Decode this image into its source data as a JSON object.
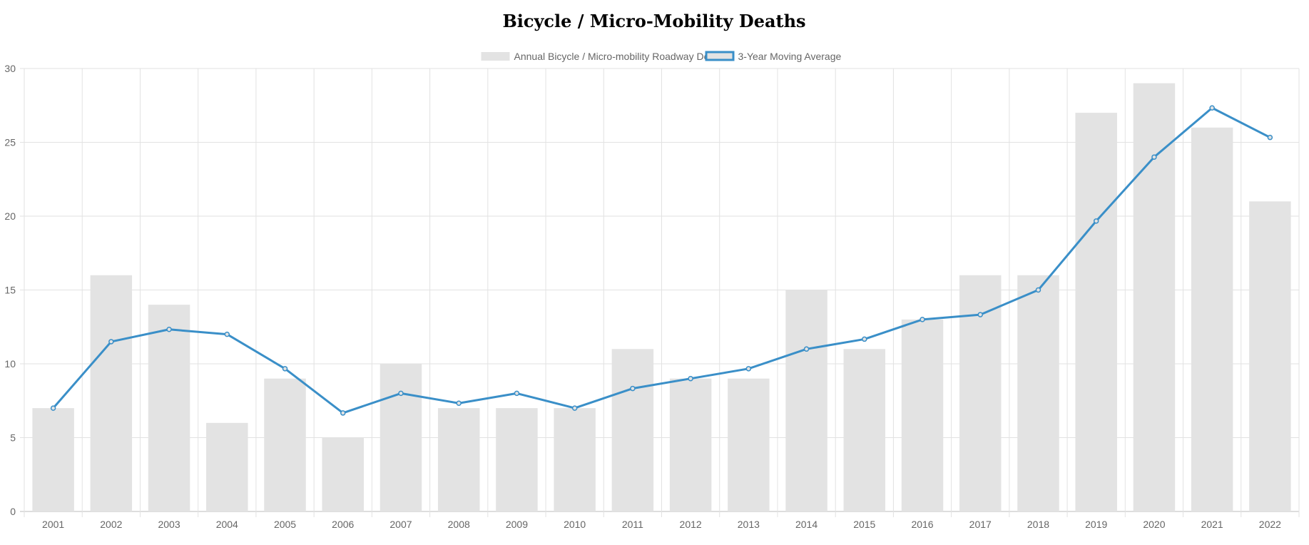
{
  "chart_data": {
    "type": "bar",
    "title": "Bicycle / Micro-Mobility Deaths",
    "categories": [
      "2001",
      "2002",
      "2003",
      "2004",
      "2005",
      "2006",
      "2007",
      "2008",
      "2009",
      "2010",
      "2011",
      "2012",
      "2013",
      "2014",
      "2015",
      "2016",
      "2017",
      "2018",
      "2019",
      "2020",
      "2021",
      "2022"
    ],
    "series": [
      {
        "name": "Annual Bicycle / Micro-mobility Roadway Deaths",
        "type": "bar",
        "color": "#e3e3e3",
        "values": [
          7,
          16,
          14,
          6,
          9,
          5,
          10,
          7,
          7,
          7,
          11,
          9,
          9,
          15,
          11,
          13,
          16,
          16,
          27,
          29,
          26,
          21
        ]
      },
      {
        "name": "3-Year Moving Average",
        "type": "line",
        "color": "#3a8fc8",
        "values": [
          7,
          11.5,
          12.33,
          12,
          9.67,
          6.67,
          8,
          7.33,
          8,
          7,
          8.33,
          9,
          9.67,
          11,
          11.67,
          13,
          13.33,
          15,
          19.67,
          24,
          27.33,
          25.33
        ]
      }
    ],
    "ylim": [
      0,
      30
    ],
    "yticks": [
      0,
      5,
      10,
      15,
      20,
      25,
      30
    ],
    "grid": true,
    "legend": "top"
  }
}
